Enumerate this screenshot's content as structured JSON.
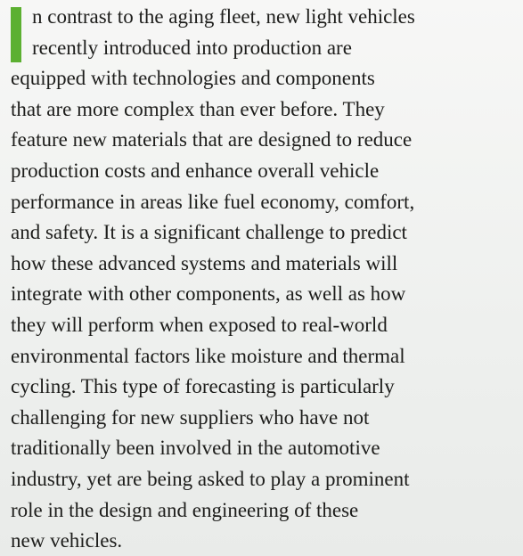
{
  "paragraph": {
    "lines": [
      "n contrast to the aging fleet, new light vehicles",
      "recently introduced into production are",
      "equipped with technologies and components",
      "that are more complex than ever before. They",
      "feature new materials that are designed to reduce",
      "production costs and enhance overall vehicle",
      "performance in areas like fuel economy, comfort,",
      "and safety. It is a significant challenge to predict",
      "how these advanced systems and materials will",
      "integrate with other components, as well as how",
      "they will perform when exposed to real-world",
      "environmental factors like moisture and thermal",
      "cycling. This type of forecasting is particularly",
      "challenging for new suppliers who have not",
      "traditionally been involved in the automotive",
      "industry, yet are being asked to play a prominent",
      "role in the design and engineering of these",
      "new vehicles."
    ]
  }
}
